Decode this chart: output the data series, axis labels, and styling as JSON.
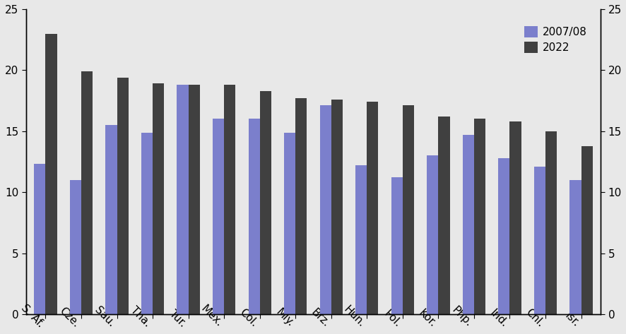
{
  "categories": [
    "S. Af.",
    "Cze.",
    "Sau.",
    "Tha.",
    "Tur.",
    "Mex.",
    "Col.",
    "Mly.",
    "Brz.",
    "Hun.",
    "Pol.",
    "Kor.",
    "Php.",
    "Ind.",
    "Chl.",
    "Isr."
  ],
  "values_2007": [
    12.3,
    11.0,
    15.5,
    14.9,
    18.8,
    16.0,
    16.0,
    14.9,
    17.1,
    12.2,
    11.2,
    13.0,
    14.7,
    12.8,
    12.1,
    11.0
  ],
  "values_2022": [
    23.0,
    19.9,
    19.4,
    18.9,
    18.8,
    18.8,
    18.3,
    17.7,
    17.6,
    17.4,
    17.1,
    16.2,
    16.0,
    15.8,
    15.0,
    13.8
  ],
  "color_2007": "#7B7FCC",
  "color_2022": "#404040",
  "bg_color": "#E8E8E8",
  "ylim": [
    0,
    25
  ],
  "yticks": [
    0,
    5,
    10,
    15,
    20,
    25
  ],
  "legend_labels": [
    "2007/08",
    "2022"
  ],
  "bar_width": 0.32,
  "figsize": [
    8.87,
    4.73
  ],
  "dpi": 100
}
